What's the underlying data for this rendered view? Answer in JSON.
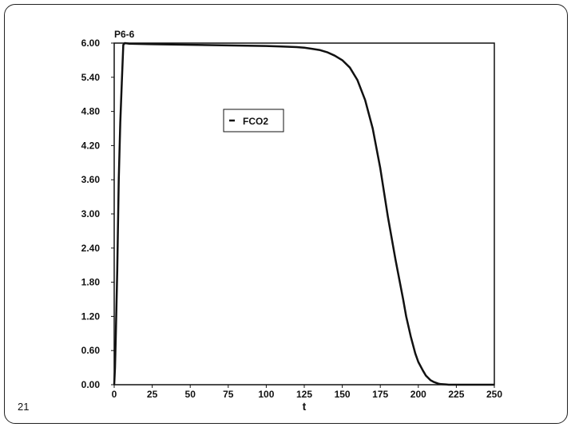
{
  "slide": {
    "number": "21"
  },
  "chart_data": {
    "type": "line",
    "title": "P6-6",
    "xlabel": "t",
    "ylabel": "",
    "xlim": [
      0,
      250
    ],
    "ylim": [
      0,
      6
    ],
    "xticks": [
      "0",
      "25",
      "50",
      "75",
      "100",
      "125",
      "150",
      "175",
      "200",
      "225",
      "250"
    ],
    "yticks": [
      "0.00",
      "0.60",
      "1.20",
      "1.80",
      "2.40",
      "3.00",
      "3.60",
      "4.20",
      "4.80",
      "5.40",
      "6.00"
    ],
    "grid": false,
    "legend_position": "upper-center",
    "series": [
      {
        "name": "FCO2",
        "color": "#111111",
        "x": [
          0,
          0.5,
          1,
          2,
          3,
          4,
          5,
          6,
          7,
          10,
          25,
          50,
          75,
          100,
          110,
          120,
          125,
          130,
          135,
          140,
          145,
          150,
          155,
          160,
          165,
          170,
          175,
          180,
          185,
          190,
          192,
          195,
          198,
          200,
          203,
          205,
          208,
          210,
          213,
          215,
          218,
          220,
          225,
          230,
          250
        ],
        "y": [
          0,
          0.3,
          0.8,
          2.0,
          3.6,
          4.6,
          5.3,
          5.97,
          6.0,
          5.99,
          5.98,
          5.97,
          5.96,
          5.95,
          5.94,
          5.93,
          5.92,
          5.9,
          5.88,
          5.84,
          5.78,
          5.7,
          5.57,
          5.35,
          5.0,
          4.5,
          3.8,
          2.95,
          2.2,
          1.5,
          1.2,
          0.85,
          0.55,
          0.4,
          0.25,
          0.16,
          0.08,
          0.05,
          0.02,
          0.01,
          0.005,
          0,
          0,
          0,
          0
        ]
      }
    ]
  }
}
